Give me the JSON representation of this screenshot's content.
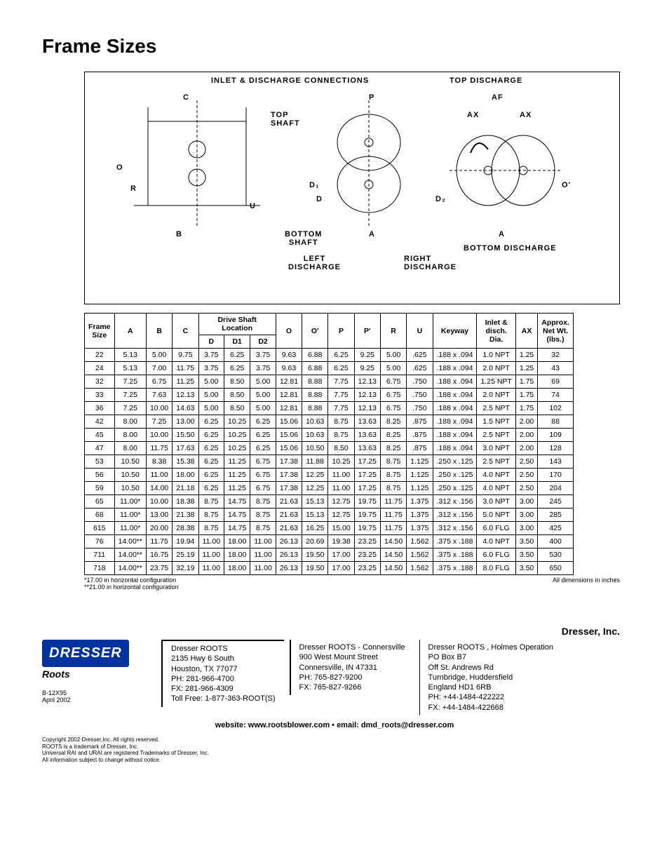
{
  "title": "Frame Sizes",
  "diagram": {
    "inlet_discharge": "INLET & DISCHARGE CONNECTIONS",
    "top_discharge": "TOP DISCHARGE",
    "top_shaft": "TOP\nSHAFT",
    "bottom_shaft": "BOTTOM\nSHAFT",
    "left_discharge": "LEFT\nDISCHARGE",
    "right_discharge": "RIGHT\nDISCHARGE",
    "bottom_discharge": "BOTTOM DISCHARGE",
    "dim_labels": [
      "C",
      "O",
      "R",
      "B",
      "U",
      "D₁",
      "D",
      "P",
      "A",
      "D₂",
      "AF",
      "AX",
      "AX",
      "O'",
      "A"
    ]
  },
  "table": {
    "header_group_drive": "Drive Shaft\nLocation",
    "header_group_inlet": "Inlet &\ndisch.\nDia.",
    "header_group_wt": "Approx.\nNet Wt.\n(lbs.)",
    "columns": [
      "Frame\nSize",
      "A",
      "B",
      "C",
      "D",
      "D1",
      "D2",
      "O",
      "O'",
      "P",
      "P'",
      "R",
      "U",
      "Keyway",
      "Inlet & disch. Dia.",
      "AX",
      "Approx. Net Wt. (lbs.)"
    ],
    "rows": [
      [
        "22",
        "5.13",
        "5.00",
        "9.75",
        "3.75",
        "6.25",
        "3.75",
        "9.63",
        "6.88",
        "6.25",
        "9.25",
        "5.00",
        ".625",
        ".188 x .094",
        "1.0 NPT",
        "1.25",
        "32"
      ],
      [
        "24",
        "5.13",
        "7.00",
        "11.75",
        "3.75",
        "6.25",
        "3.75",
        "9.63",
        "6.88",
        "6.25",
        "9.25",
        "5.00",
        ".625",
        ".188 x .094",
        "2.0 NPT",
        "1.25",
        "43"
      ],
      [
        "32",
        "7.25",
        "6.75",
        "11.25",
        "5.00",
        "8.50",
        "5.00",
        "12.81",
        "8.88",
        "7.75",
        "12.13",
        "6.75",
        ".750",
        ".188 x .094",
        "1.25 NPT",
        "1.75",
        "69"
      ],
      [
        "33",
        "7.25",
        "7.63",
        "12.13",
        "5.00",
        "8.50",
        "5.00",
        "12.81",
        "8.88",
        "7.75",
        "12.13",
        "6.75",
        ".750",
        ".188 x .094",
        "2.0 NPT",
        "1.75",
        "74"
      ],
      [
        "36",
        "7.25",
        "10.00",
        "14.63",
        "5.00",
        "8.50",
        "5.00",
        "12.81",
        "8.88",
        "7.75",
        "12.13",
        "6.75",
        ".750",
        ".188 x .094",
        "2.5 NPT",
        "1.75",
        "102"
      ],
      [
        "42",
        "8.00",
        "7.25",
        "13.00",
        "6.25",
        "10.25",
        "6.25",
        "15.06",
        "10.63",
        "8.75",
        "13.63",
        "8.25",
        ".875",
        ".188 x .094",
        "1.5 NPT",
        "2.00",
        "88"
      ],
      [
        "45",
        "8.00",
        "10.00",
        "15.50",
        "6.25",
        "10.25",
        "6.25",
        "15.06",
        "10.63",
        "8.75",
        "13.63",
        "8.25",
        ".875",
        ".188 x .094",
        "2.5 NPT",
        "2.00",
        "109"
      ],
      [
        "47",
        "8.00",
        "11.75",
        "17.63",
        "6.25",
        "10.25",
        "6.25",
        "15.06",
        "10.50",
        "8.50",
        "13.63",
        "8.25",
        ".875",
        ".188 x .094",
        "3.0 NPT",
        "2.00",
        "128"
      ],
      [
        "53",
        "10.50",
        "8.38",
        "15.38",
        "6.25",
        "11.25",
        "6.75",
        "17.38",
        "11.88",
        "10.25",
        "17.25",
        "8.75",
        "1.125",
        ".250 x .125",
        "2.5 NPT",
        "2.50",
        "143"
      ],
      [
        "56",
        "10.50",
        "11.00",
        "18.00",
        "6.25",
        "11.25",
        "6.75",
        "17.38",
        "12.25",
        "11.00",
        "17.25",
        "8.75",
        "1.125",
        ".250 x .125",
        "4.0 NPT",
        "2.50",
        "170"
      ],
      [
        "59",
        "10.50",
        "14.00",
        "21.18",
        "6.25",
        "11.25",
        "6.75",
        "17.38",
        "12.25",
        "11.00",
        "17.25",
        "8.75",
        "1.125",
        ".250 x .125",
        "4.0 NPT",
        "2.50",
        "204"
      ],
      [
        "65",
        "11.00*",
        "10.00",
        "18.38",
        "8.75",
        "14.75",
        "8.75",
        "21.63",
        "15.13",
        "12.75",
        "19.75",
        "11.75",
        "1.375",
        ".312 x .156",
        "3.0 NPT",
        "3.00",
        "245"
      ],
      [
        "68",
        "11.00*",
        "13.00",
        "21.38",
        "8.75",
        "14.75",
        "8.75",
        "21.63",
        "15.13",
        "12.75",
        "19.75",
        "11.75",
        "1.375",
        ".312 x .156",
        "5.0 NPT",
        "3.00",
        "285"
      ],
      [
        "615",
        "11.00*",
        "20.00",
        "28.38",
        "8.75",
        "14.75",
        "8.75",
        "21.63",
        "16.25",
        "15.00",
        "19.75",
        "11.75",
        "1.375",
        ".312 x .156",
        "6.0 FLG",
        "3.00",
        "425"
      ],
      [
        "76",
        "14.00**",
        "11.75",
        "19.94",
        "11.00",
        "18.00",
        "11.00",
        "26.13",
        "20.69",
        "19.38",
        "23.25",
        "14.50",
        "1.562",
        ".375 x .188",
        "4.0 NPT",
        "3.50",
        "400"
      ],
      [
        "711",
        "14.00**",
        "16.75",
        "25.19",
        "11.00",
        "18.00",
        "11.00",
        "26.13",
        "19.50",
        "17.00",
        "23.25",
        "14.50",
        "1.562",
        ".375 x .188",
        "6.0 FLG",
        "3.50",
        "530"
      ],
      [
        "718",
        "14.00**",
        "23.75",
        "32.19",
        "11.00",
        "18.00",
        "11.00",
        "26.13",
        "19.50",
        "17.00",
        "23.25",
        "14.50",
        "1.562",
        ".375 x .188",
        "8.0 FLG",
        "3.50",
        "650"
      ]
    ]
  },
  "footnotes": {
    "left1": "*17.00 in horizontal configuration",
    "left2": "**21.00 in horizontal configuration",
    "right": "All dimensions in inches"
  },
  "footer": {
    "company": "Dresser, Inc.",
    "logo": "DRESSER",
    "roots": "Roots",
    "doc_code": "B-12X95",
    "doc_date": "April 2002",
    "addr1": [
      "Dresser ROOTS",
      "2135 Hwy 6 South",
      "Houston, TX 77077",
      "PH: 281-966-4700",
      "FX: 281-966-4309",
      "Toll Free: 1-877-363-ROOT(S)"
    ],
    "addr2": [
      "Dresser ROOTS - Connersville",
      "900 West Mount Street",
      "Connersville, IN 47331",
      "PH: 765-827-9200",
      "FX: 765-827-9266"
    ],
    "addr3": [
      "Dresser ROOTS , Holmes Operation",
      "PO Box B7",
      "Off St. Andrews Rd",
      "Turnbridge, Huddersfield",
      "England HD1 6RB",
      "PH: +44-1484-422222",
      "FX: +44-1484-422668"
    ],
    "website": "website: www.rootsblower.com • email: dmd_roots@dresser.com",
    "legal": [
      "Copyright 2002 Dresser,Inc. All rights reserved.",
      "ROOTS is a trademark of Dresser, Inc.",
      "Universal RAI and  URAI are registered Trademarks of Dresser, Inc.",
      "All information subject to change without notice."
    ]
  }
}
